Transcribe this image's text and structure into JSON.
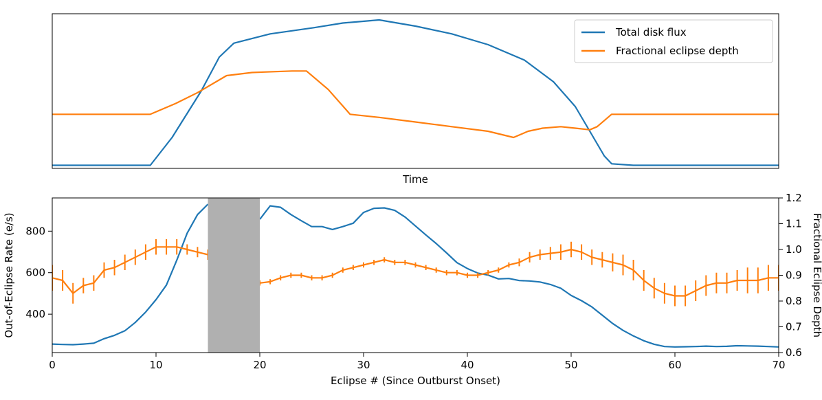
{
  "chart_data": [
    {
      "type": "line",
      "title": "",
      "xlabel": "Time",
      "ylabel": "",
      "xticks": false,
      "yticks": false,
      "ylim": [
        0,
        1
      ],
      "legend_position": "top-right",
      "series": [
        {
          "name": "Total disk flux",
          "color": "#1f77b4",
          "points": [
            [
              0,
              0.02
            ],
            [
              0.135,
              0.02
            ],
            [
              0.165,
              0.2
            ],
            [
              0.205,
              0.5
            ],
            [
              0.23,
              0.72
            ],
            [
              0.25,
              0.81
            ],
            [
              0.3,
              0.87
            ],
            [
              0.36,
              0.91
            ],
            [
              0.4,
              0.94
            ],
            [
              0.45,
              0.96
            ],
            [
              0.5,
              0.92
            ],
            [
              0.55,
              0.87
            ],
            [
              0.6,
              0.8
            ],
            [
              0.65,
              0.7
            ],
            [
              0.69,
              0.56
            ],
            [
              0.72,
              0.4
            ],
            [
              0.74,
              0.24
            ],
            [
              0.76,
              0.08
            ],
            [
              0.77,
              0.03
            ],
            [
              0.8,
              0.02
            ],
            [
              1.0,
              0.02
            ]
          ]
        },
        {
          "name": "Fractional eclipse depth",
          "color": "#ff7f0e",
          "points": [
            [
              0,
              0.35
            ],
            [
              0.135,
              0.35
            ],
            [
              0.17,
              0.42
            ],
            [
              0.2,
              0.49
            ],
            [
              0.24,
              0.6
            ],
            [
              0.275,
              0.62
            ],
            [
              0.33,
              0.63
            ],
            [
              0.35,
              0.63
            ],
            [
              0.38,
              0.51
            ],
            [
              0.41,
              0.35
            ],
            [
              0.45,
              0.33
            ],
            [
              0.5,
              0.3
            ],
            [
              0.55,
              0.27
            ],
            [
              0.6,
              0.24
            ],
            [
              0.635,
              0.2
            ],
            [
              0.655,
              0.24
            ],
            [
              0.675,
              0.26
            ],
            [
              0.7,
              0.27
            ],
            [
              0.72,
              0.26
            ],
            [
              0.74,
              0.25
            ],
            [
              0.75,
              0.27
            ],
            [
              0.77,
              0.35
            ],
            [
              1.0,
              0.35
            ]
          ]
        }
      ]
    },
    {
      "type": "line",
      "title": "",
      "xlabel": "Eclipse # (Since Outburst Onset)",
      "ylabel": "Out-of-Eclipse Rate (e/s)",
      "ylabel_right": "Fractional Eclipse Depth",
      "xlim": [
        0,
        70
      ],
      "ylim": [
        215,
        960
      ],
      "ylim_right": [
        0.6,
        1.2
      ],
      "xticks": [
        0,
        10,
        20,
        30,
        40,
        50,
        60,
        70
      ],
      "yticks": [
        400,
        600,
        800
      ],
      "yticks_right": [
        0.6,
        0.7,
        0.8,
        0.9,
        1.0,
        1.1,
        1.2
      ],
      "shaded_region": {
        "x": [
          15,
          20
        ],
        "color": "#b0b0b0"
      },
      "series": [
        {
          "name": "Out-of-eclipse rate",
          "axis": "left",
          "color": "#1f77b4",
          "segments": [
            {
              "x": [
                0,
                1,
                2,
                3,
                4,
                5,
                6,
                7,
                8,
                9,
                10,
                11,
                12,
                13,
                14,
                15
              ],
              "y": [
                256,
                254,
                253,
                256,
                260,
                282,
                298,
                320,
                360,
                410,
                470,
                540,
                660,
                790,
                880,
                930
              ]
            },
            {
              "x": [
                20,
                21,
                22,
                23,
                24,
                25,
                26,
                27,
                28,
                29,
                30,
                31,
                32,
                33,
                34,
                35,
                36,
                37,
                38,
                39,
                40,
                41,
                42,
                43,
                44,
                45,
                46,
                47,
                48,
                49,
                50,
                51,
                52,
                53,
                54,
                55,
                56,
                57,
                58,
                59,
                60,
                61,
                62,
                63,
                64,
                65,
                66,
                67,
                68,
                69,
                70
              ],
              "y": [
                857,
                922,
                915,
                880,
                850,
                822,
                822,
                808,
                822,
                838,
                890,
                910,
                912,
                900,
                868,
                825,
                782,
                740,
                695,
                648,
                620,
                598,
                588,
                570,
                572,
                562,
                560,
                555,
                543,
                525,
                490,
                465,
                435,
                395,
                355,
                322,
                295,
                272,
                255,
                244,
                242,
                243,
                244,
                246,
                244,
                245,
                248,
                247,
                246,
                244,
                242
              ]
            }
          ]
        },
        {
          "name": "Fractional eclipse depth",
          "axis": "right",
          "color": "#ff7f0e",
          "segments": [
            {
              "x": [
                0,
                1,
                2,
                3,
                4,
                5,
                6,
                7,
                8,
                9,
                10,
                11,
                12,
                13,
                14,
                15
              ],
              "y": [
                0.89,
                0.88,
                0.83,
                0.86,
                0.87,
                0.92,
                0.93,
                0.95,
                0.97,
                0.99,
                1.01,
                1.01,
                1.01,
                1.0,
                0.99,
                0.98
              ],
              "err": [
                0.05,
                0.04,
                0.04,
                0.03,
                0.03,
                0.03,
                0.03,
                0.03,
                0.03,
                0.03,
                0.03,
                0.03,
                0.03,
                0.02,
                0.02,
                0.02
              ]
            },
            {
              "x": [
                20,
                21,
                22,
                23,
                24,
                25,
                26,
                27,
                28,
                29,
                30,
                31,
                32,
                33,
                34,
                35,
                36,
                37,
                38,
                39,
                40,
                41,
                42,
                43,
                44,
                45,
                46,
                47,
                48,
                49,
                50,
                51,
                52,
                53,
                54,
                55,
                56,
                57,
                58,
                59,
                60,
                61,
                62,
                63,
                64,
                65,
                66,
                67,
                68,
                69,
                70
              ],
              "y": [
                0.87,
                0.875,
                0.89,
                0.9,
                0.9,
                0.89,
                0.89,
                0.9,
                0.92,
                0.93,
                0.94,
                0.95,
                0.96,
                0.95,
                0.95,
                0.94,
                0.93,
                0.92,
                0.91,
                0.91,
                0.9,
                0.9,
                0.91,
                0.92,
                0.94,
                0.95,
                0.97,
                0.98,
                0.985,
                0.99,
                1.0,
                0.99,
                0.97,
                0.96,
                0.95,
                0.94,
                0.92,
                0.88,
                0.85,
                0.83,
                0.82,
                0.82,
                0.84,
                0.86,
                0.87,
                0.87,
                0.88,
                0.88,
                0.88,
                0.89,
                0.89
              ],
              "err": [
                0.01,
                0.01,
                0.01,
                0.01,
                0.01,
                0.01,
                0.01,
                0.01,
                0.01,
                0.01,
                0.01,
                0.01,
                0.01,
                0.01,
                0.01,
                0.01,
                0.01,
                0.01,
                0.01,
                0.01,
                0.01,
                0.01,
                0.01,
                0.01,
                0.01,
                0.015,
                0.02,
                0.02,
                0.025,
                0.03,
                0.03,
                0.03,
                0.03,
                0.03,
                0.035,
                0.04,
                0.04,
                0.04,
                0.04,
                0.04,
                0.04,
                0.04,
                0.04,
                0.04,
                0.04,
                0.04,
                0.04,
                0.05,
                0.05,
                0.05,
                0.05
              ]
            }
          ]
        }
      ]
    }
  ]
}
